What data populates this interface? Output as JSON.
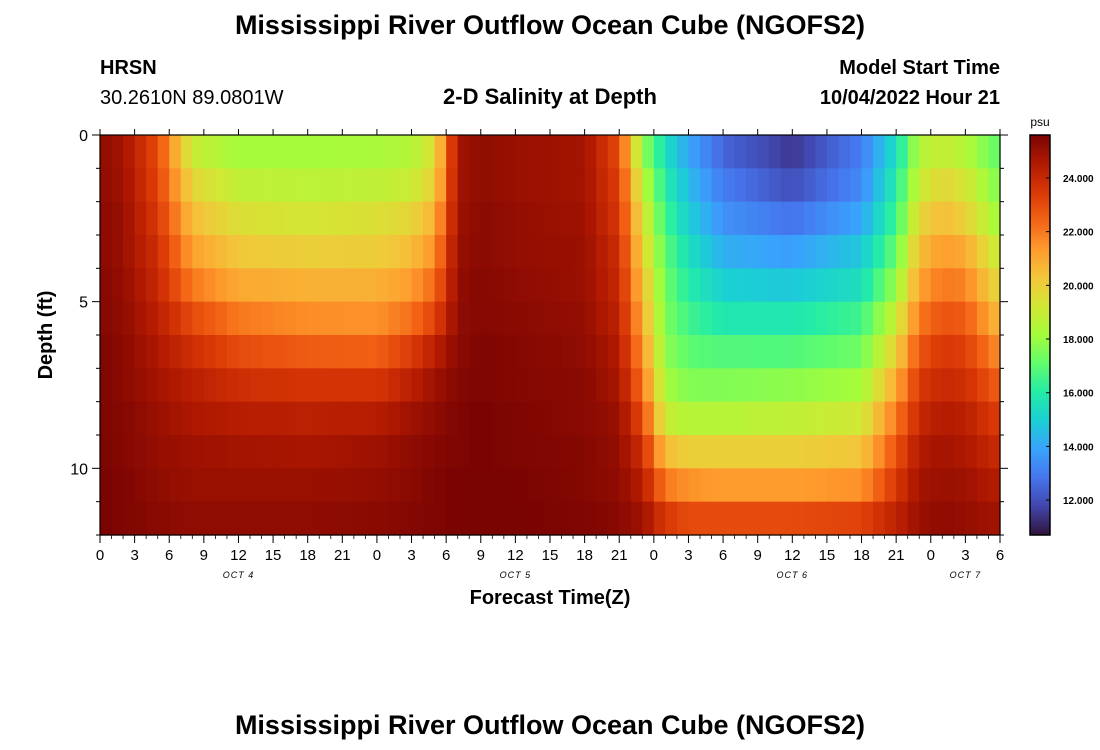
{
  "titles": {
    "main": "Mississippi River Outflow Ocean Cube (NGOFS2)",
    "repeat": "Mississippi River Outflow Ocean Cube (NGOFS2)"
  },
  "station": {
    "name": "HRSN",
    "coords": "30.2610N  89.0801W"
  },
  "model": {
    "label": "Model Start Time",
    "value": "10/04/2022 Hour 21"
  },
  "chart_data": {
    "type": "heatmap",
    "title": "2-D Salinity at Depth",
    "xlabel": "Forecast Time(Z)",
    "ylabel": "Depth (ft)",
    "x_range_hours": [
      0,
      78
    ],
    "y_range": [
      0,
      12
    ],
    "y_ticks": [
      "0",
      "5",
      "10"
    ],
    "x_ticks": [
      "0",
      "3",
      "6",
      "9",
      "12",
      "15",
      "18",
      "21",
      "0",
      "3",
      "6",
      "9",
      "12",
      "15",
      "18",
      "21",
      "0",
      "3",
      "6",
      "9",
      "12",
      "15",
      "18",
      "21",
      "0",
      "3",
      "6"
    ],
    "day_labels": [
      "OCT 4",
      "OCT 5",
      "OCT 6",
      "OCT 7"
    ],
    "day_label_hours": [
      12,
      36,
      60,
      75
    ],
    "colorbar": {
      "unit": "psu",
      "min": 10.7,
      "max": 25.6,
      "ticks": [
        "12.000",
        "14.000",
        "16.000",
        "18.000",
        "20.000",
        "22.000",
        "24.000"
      ],
      "tick_values": [
        12,
        14,
        16,
        18,
        20,
        22,
        24
      ],
      "colors": [
        "#30123b",
        "#4145ab",
        "#4675ed",
        "#39a2fc",
        "#1bcfd4",
        "#24eca6",
        "#61fc6c",
        "#a4fc3b",
        "#d1e834",
        "#f3c63a",
        "#fe9b2d",
        "#f36315",
        "#d93806",
        "#b11901",
        "#7a0402"
      ]
    },
    "depth_levels": [
      0.5,
      1.5,
      2.5,
      3.5,
      4.5,
      5.5,
      6.5,
      7.5,
      8.5,
      9.5,
      10.5,
      11.5
    ],
    "keyframe_hours": [
      0,
      2,
      5,
      8,
      12,
      18,
      24,
      27,
      29,
      31,
      33,
      36,
      42,
      45,
      47,
      49,
      51,
      54,
      60,
      66,
      69,
      71,
      73,
      75,
      78
    ],
    "salinity_keyframes": [
      [
        25.2,
        24.8,
        23.0,
        19.0,
        18.2,
        18.2,
        18.3,
        18.5,
        19.5,
        24.8,
        25.2,
        25.0,
        24.8,
        23.0,
        18.0,
        15.5,
        14.0,
        12.5,
        11.5,
        13.0,
        15.5,
        18.5,
        19.0,
        18.5,
        17.0
      ],
      [
        25.2,
        24.9,
        23.2,
        19.8,
        18.8,
        18.7,
        18.8,
        19.0,
        20.0,
        24.8,
        25.2,
        25.0,
        24.8,
        23.3,
        18.8,
        16.0,
        14.5,
        13.0,
        12.0,
        13.3,
        16.0,
        19.0,
        19.8,
        19.3,
        17.5
      ],
      [
        25.3,
        25.0,
        23.5,
        20.5,
        19.5,
        19.3,
        19.5,
        19.8,
        20.8,
        24.9,
        25.3,
        25.1,
        24.9,
        23.5,
        19.5,
        16.5,
        15.0,
        13.5,
        12.8,
        14.0,
        16.5,
        19.8,
        20.5,
        20.0,
        18.0
      ],
      [
        25.3,
        25.0,
        23.8,
        21.2,
        20.2,
        20.0,
        20.1,
        20.5,
        21.5,
        25.0,
        25.3,
        25.1,
        25.0,
        23.8,
        20.0,
        17.0,
        15.5,
        14.2,
        13.8,
        14.8,
        17.2,
        20.5,
        21.3,
        21.0,
        18.8
      ],
      [
        25.4,
        25.1,
        24.0,
        22.0,
        21.0,
        20.8,
        20.8,
        21.3,
        22.3,
        25.1,
        25.4,
        25.2,
        25.0,
        24.0,
        20.5,
        17.3,
        16.0,
        15.0,
        14.8,
        15.5,
        18.0,
        21.2,
        22.0,
        21.8,
        19.6
      ],
      [
        25.4,
        25.2,
        24.3,
        23.0,
        22.0,
        21.6,
        21.5,
        22.2,
        23.2,
        25.2,
        25.4,
        25.3,
        25.1,
        24.2,
        21.0,
        17.5,
        16.5,
        15.8,
        15.8,
        16.5,
        19.0,
        22.0,
        22.8,
        22.6,
        20.5
      ],
      [
        25.5,
        25.3,
        24.6,
        23.8,
        23.0,
        22.6,
        22.5,
        23.4,
        24.3,
        25.3,
        25.5,
        25.4,
        25.2,
        24.5,
        21.5,
        17.8,
        17.0,
        16.8,
        16.8,
        17.3,
        20.0,
        22.8,
        23.5,
        23.3,
        21.5
      ],
      [
        25.5,
        25.3,
        24.8,
        24.3,
        23.8,
        23.6,
        23.6,
        24.3,
        24.9,
        25.4,
        25.5,
        25.4,
        25.3,
        24.7,
        22.2,
        18.2,
        17.6,
        17.6,
        17.8,
        18.2,
        21.0,
        23.5,
        24.0,
        23.8,
        22.5
      ],
      [
        25.5,
        25.4,
        25.0,
        24.6,
        24.4,
        24.3,
        24.4,
        24.9,
        25.2,
        25.5,
        25.6,
        25.5,
        25.3,
        25.0,
        23.0,
        19.0,
        18.5,
        18.6,
        18.8,
        19.2,
        22.0,
        24.0,
        24.5,
        24.3,
        23.3
      ],
      [
        25.6,
        25.4,
        25.1,
        24.9,
        24.8,
        24.7,
        24.9,
        25.2,
        25.4,
        25.5,
        25.6,
        25.5,
        25.4,
        25.1,
        23.8,
        20.5,
        20.0,
        20.0,
        20.0,
        20.3,
        22.8,
        24.5,
        24.8,
        24.6,
        23.9
      ],
      [
        25.6,
        25.5,
        25.2,
        25.0,
        25.0,
        25.0,
        25.1,
        25.3,
        25.5,
        25.6,
        25.6,
        25.6,
        25.4,
        25.2,
        24.4,
        22.0,
        21.5,
        21.3,
        21.3,
        21.5,
        23.5,
        24.8,
        25.0,
        24.9,
        24.4
      ],
      [
        25.6,
        25.5,
        25.3,
        25.2,
        25.2,
        25.2,
        25.3,
        25.4,
        25.5,
        25.6,
        25.6,
        25.6,
        25.5,
        25.3,
        24.9,
        23.5,
        23.0,
        23.0,
        23.0,
        23.2,
        24.2,
        25.0,
        25.2,
        25.1,
        24.8
      ]
    ]
  }
}
